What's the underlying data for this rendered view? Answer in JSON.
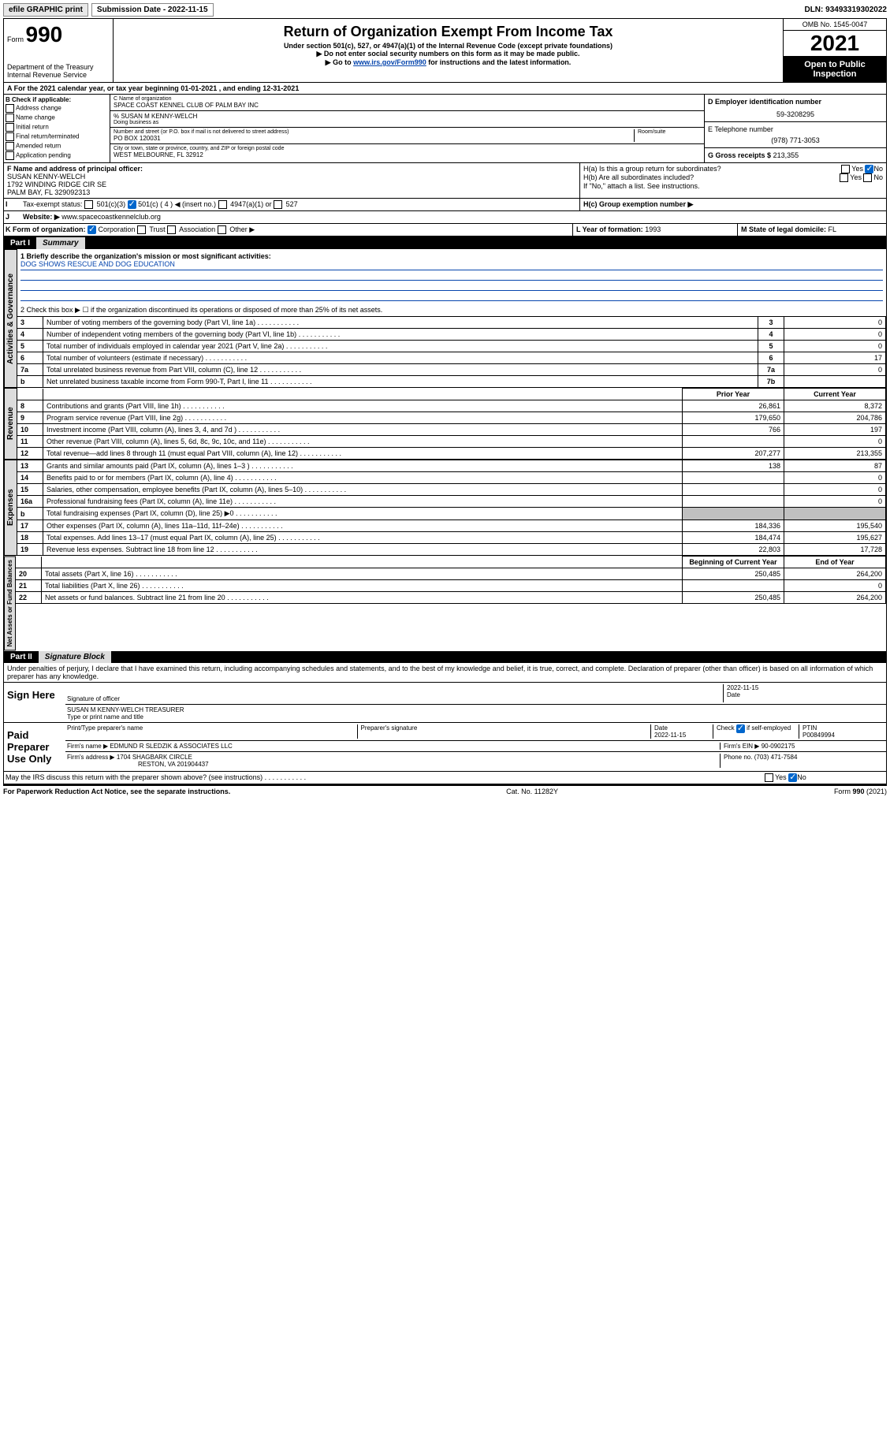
{
  "topbar": {
    "efile": "efile GRAPHIC print",
    "submission_label": "Submission Date - 2022-11-15",
    "dln": "DLN: 93493319302022"
  },
  "header": {
    "form_prefix": "Form",
    "form_number": "990",
    "dept": "Department of the Treasury Internal Revenue Service",
    "title": "Return of Organization Exempt From Income Tax",
    "subtitle": "Under section 501(c), 527, or 4947(a)(1) of the Internal Revenue Code (except private foundations)",
    "warn": "▶ Do not enter social security numbers on this form as it may be made public.",
    "goto_prefix": "▶ Go to ",
    "goto_link": "www.irs.gov/Form990",
    "goto_suffix": " for instructions and the latest information.",
    "omb": "OMB No. 1545-0047",
    "year": "2021",
    "open": "Open to Public Inspection"
  },
  "line_a": "A For the 2021 calendar year, or tax year beginning 01-01-2021   , and ending 12-31-2021",
  "box_b": {
    "title": "B Check if applicable:",
    "items": [
      "Address change",
      "Name change",
      "Initial return",
      "Final return/terminated",
      "Amended return",
      "Application pending"
    ]
  },
  "box_c": {
    "name_label": "C Name of organization",
    "name": "SPACE COAST KENNEL CLUB OF PALM BAY INC",
    "care_of": "% SUSAN M KENNY-WELCH",
    "dba_label": "Doing business as",
    "street_label": "Number and street (or P.O. box if mail is not delivered to street address)",
    "room_label": "Room/suite",
    "street": "PO BOX 120031",
    "city_label": "City or town, state or province, country, and ZIP or foreign postal code",
    "city": "WEST MELBOURNE, FL  32912"
  },
  "box_d": {
    "ein_label": "D Employer identification number",
    "ein": "59-3208295",
    "phone_label": "E Telephone number",
    "phone": "(978) 771-3053",
    "gross_label": "G Gross receipts $",
    "gross": "213,355"
  },
  "box_f": {
    "label": "F Name and address of principal officer:",
    "name": "SUSAN KENNY-WELCH",
    "addr1": "1792 WINDING RIDGE CIR SE",
    "addr2": "PALM BAY, FL  329092313"
  },
  "box_h": {
    "a_label": "H(a)  Is this a group return for subordinates?",
    "b_label": "H(b)  Are all subordinates included?",
    "note": "If \"No,\" attach a list. See instructions.",
    "c_label": "H(c)  Group exemption number ▶",
    "yes": "Yes",
    "no": "No"
  },
  "line_i": {
    "label": "Tax-exempt status:",
    "opts": [
      "501(c)(3)",
      "501(c) ( 4 ) ◀ (insert no.)",
      "4947(a)(1) or",
      "527"
    ]
  },
  "line_j": {
    "label": "Website: ▶",
    "value": "www.spacecoastkennelclub.org"
  },
  "line_k": {
    "label": "K Form of organization:",
    "opts": [
      "Corporation",
      "Trust",
      "Association",
      "Other ▶"
    ]
  },
  "line_l": {
    "label": "L Year of formation:",
    "value": "1993"
  },
  "line_m": {
    "label": "M State of legal domicile:",
    "value": "FL"
  },
  "part1": {
    "label": "Part I",
    "title": "Summary",
    "sections": {
      "governance": "Activities & Governance",
      "revenue": "Revenue",
      "expenses": "Expenses",
      "netassets": "Net Assets or Fund Balances"
    },
    "line1_label": "1  Briefly describe the organization's mission or most significant activities:",
    "line1_value": "DOG SHOWS RESCUE AND DOG EDUCATION",
    "line2": "2   Check this box ▶ ☐  if the organization discontinued its operations or disposed of more than 25% of its net assets.",
    "rows_gov": [
      {
        "n": "3",
        "d": "Number of voting members of the governing body (Part VI, line 1a)",
        "b": "3",
        "v": "0"
      },
      {
        "n": "4",
        "d": "Number of independent voting members of the governing body (Part VI, line 1b)",
        "b": "4",
        "v": "0"
      },
      {
        "n": "5",
        "d": "Total number of individuals employed in calendar year 2021 (Part V, line 2a)",
        "b": "5",
        "v": "0"
      },
      {
        "n": "6",
        "d": "Total number of volunteers (estimate if necessary)",
        "b": "6",
        "v": "17"
      },
      {
        "n": "7a",
        "d": "Total unrelated business revenue from Part VIII, column (C), line 12",
        "b": "7a",
        "v": "0"
      },
      {
        "n": "b",
        "d": "Net unrelated business taxable income from Form 990-T, Part I, line 11",
        "b": "7b",
        "v": ""
      }
    ],
    "col_headers": {
      "prior": "Prior Year",
      "current": "Current Year",
      "begin": "Beginning of Current Year",
      "end": "End of Year"
    },
    "rows_rev": [
      {
        "n": "8",
        "d": "Contributions and grants (Part VIII, line 1h)",
        "p": "26,861",
        "c": "8,372"
      },
      {
        "n": "9",
        "d": "Program service revenue (Part VIII, line 2g)",
        "p": "179,650",
        "c": "204,786"
      },
      {
        "n": "10",
        "d": "Investment income (Part VIII, column (A), lines 3, 4, and 7d )",
        "p": "766",
        "c": "197"
      },
      {
        "n": "11",
        "d": "Other revenue (Part VIII, column (A), lines 5, 6d, 8c, 9c, 10c, and 11e)",
        "p": "",
        "c": "0"
      },
      {
        "n": "12",
        "d": "Total revenue—add lines 8 through 11 (must equal Part VIII, column (A), line 12)",
        "p": "207,277",
        "c": "213,355"
      }
    ],
    "rows_exp": [
      {
        "n": "13",
        "d": "Grants and similar amounts paid (Part IX, column (A), lines 1–3 )",
        "p": "138",
        "c": "87"
      },
      {
        "n": "14",
        "d": "Benefits paid to or for members (Part IX, column (A), line 4)",
        "p": "",
        "c": "0"
      },
      {
        "n": "15",
        "d": "Salaries, other compensation, employee benefits (Part IX, column (A), lines 5–10)",
        "p": "",
        "c": "0"
      },
      {
        "n": "16a",
        "d": "Professional fundraising fees (Part IX, column (A), line 11e)",
        "p": "",
        "c": "0"
      },
      {
        "n": "b",
        "d": "Total fundraising expenses (Part IX, column (D), line 25) ▶0",
        "p": "grey",
        "c": "grey"
      },
      {
        "n": "17",
        "d": "Other expenses (Part IX, column (A), lines 11a–11d, 11f–24e)",
        "p": "184,336",
        "c": "195,540"
      },
      {
        "n": "18",
        "d": "Total expenses. Add lines 13–17 (must equal Part IX, column (A), line 25)",
        "p": "184,474",
        "c": "195,627"
      },
      {
        "n": "19",
        "d": "Revenue less expenses. Subtract line 18 from line 12",
        "p": "22,803",
        "c": "17,728"
      }
    ],
    "rows_net": [
      {
        "n": "20",
        "d": "Total assets (Part X, line 16)",
        "p": "250,485",
        "c": "264,200"
      },
      {
        "n": "21",
        "d": "Total liabilities (Part X, line 26)",
        "p": "",
        "c": "0"
      },
      {
        "n": "22",
        "d": "Net assets or fund balances. Subtract line 21 from line 20",
        "p": "250,485",
        "c": "264,200"
      }
    ]
  },
  "part2": {
    "label": "Part II",
    "title": "Signature Block",
    "declaration": "Under penalties of perjury, I declare that I have examined this return, including accompanying schedules and statements, and to the best of my knowledge and belief, it is true, correct, and complete. Declaration of preparer (other than officer) is based on all information of which preparer has any knowledge.",
    "sign_here": "Sign Here",
    "sig_officer": "Signature of officer",
    "date_label": "Date",
    "sig_date": "2022-11-15",
    "name_title_label": "Type or print name and title",
    "name_title": "SUSAN M KENNY-WELCH  TREASURER",
    "paid_prep": "Paid Preparer Use Only",
    "prep_name_label": "Print/Type preparer's name",
    "prep_sig_label": "Preparer's signature",
    "prep_date": "2022-11-15",
    "check_if": "Check ☑ if self-employed",
    "ptin_label": "PTIN",
    "ptin": "P00849994",
    "firm_name_label": "Firm's name    ▶",
    "firm_name": "EDMUND R SLEDZIK & ASSOCIATES LLC",
    "firm_ein_label": "Firm's EIN ▶",
    "firm_ein": "90-0902175",
    "firm_addr_label": "Firm's address ▶",
    "firm_addr1": "1704 SHAGBARK CIRCLE",
    "firm_addr2": "RESTON, VA  201904437",
    "firm_phone_label": "Phone no.",
    "firm_phone": "(703) 471-7584",
    "may_irs": "May the IRS discuss this return with the preparer shown above? (see instructions)"
  },
  "footer": {
    "paperwork": "For Paperwork Reduction Act Notice, see the separate instructions.",
    "cat": "Cat. No. 11282Y",
    "form": "Form 990 (2021)"
  }
}
